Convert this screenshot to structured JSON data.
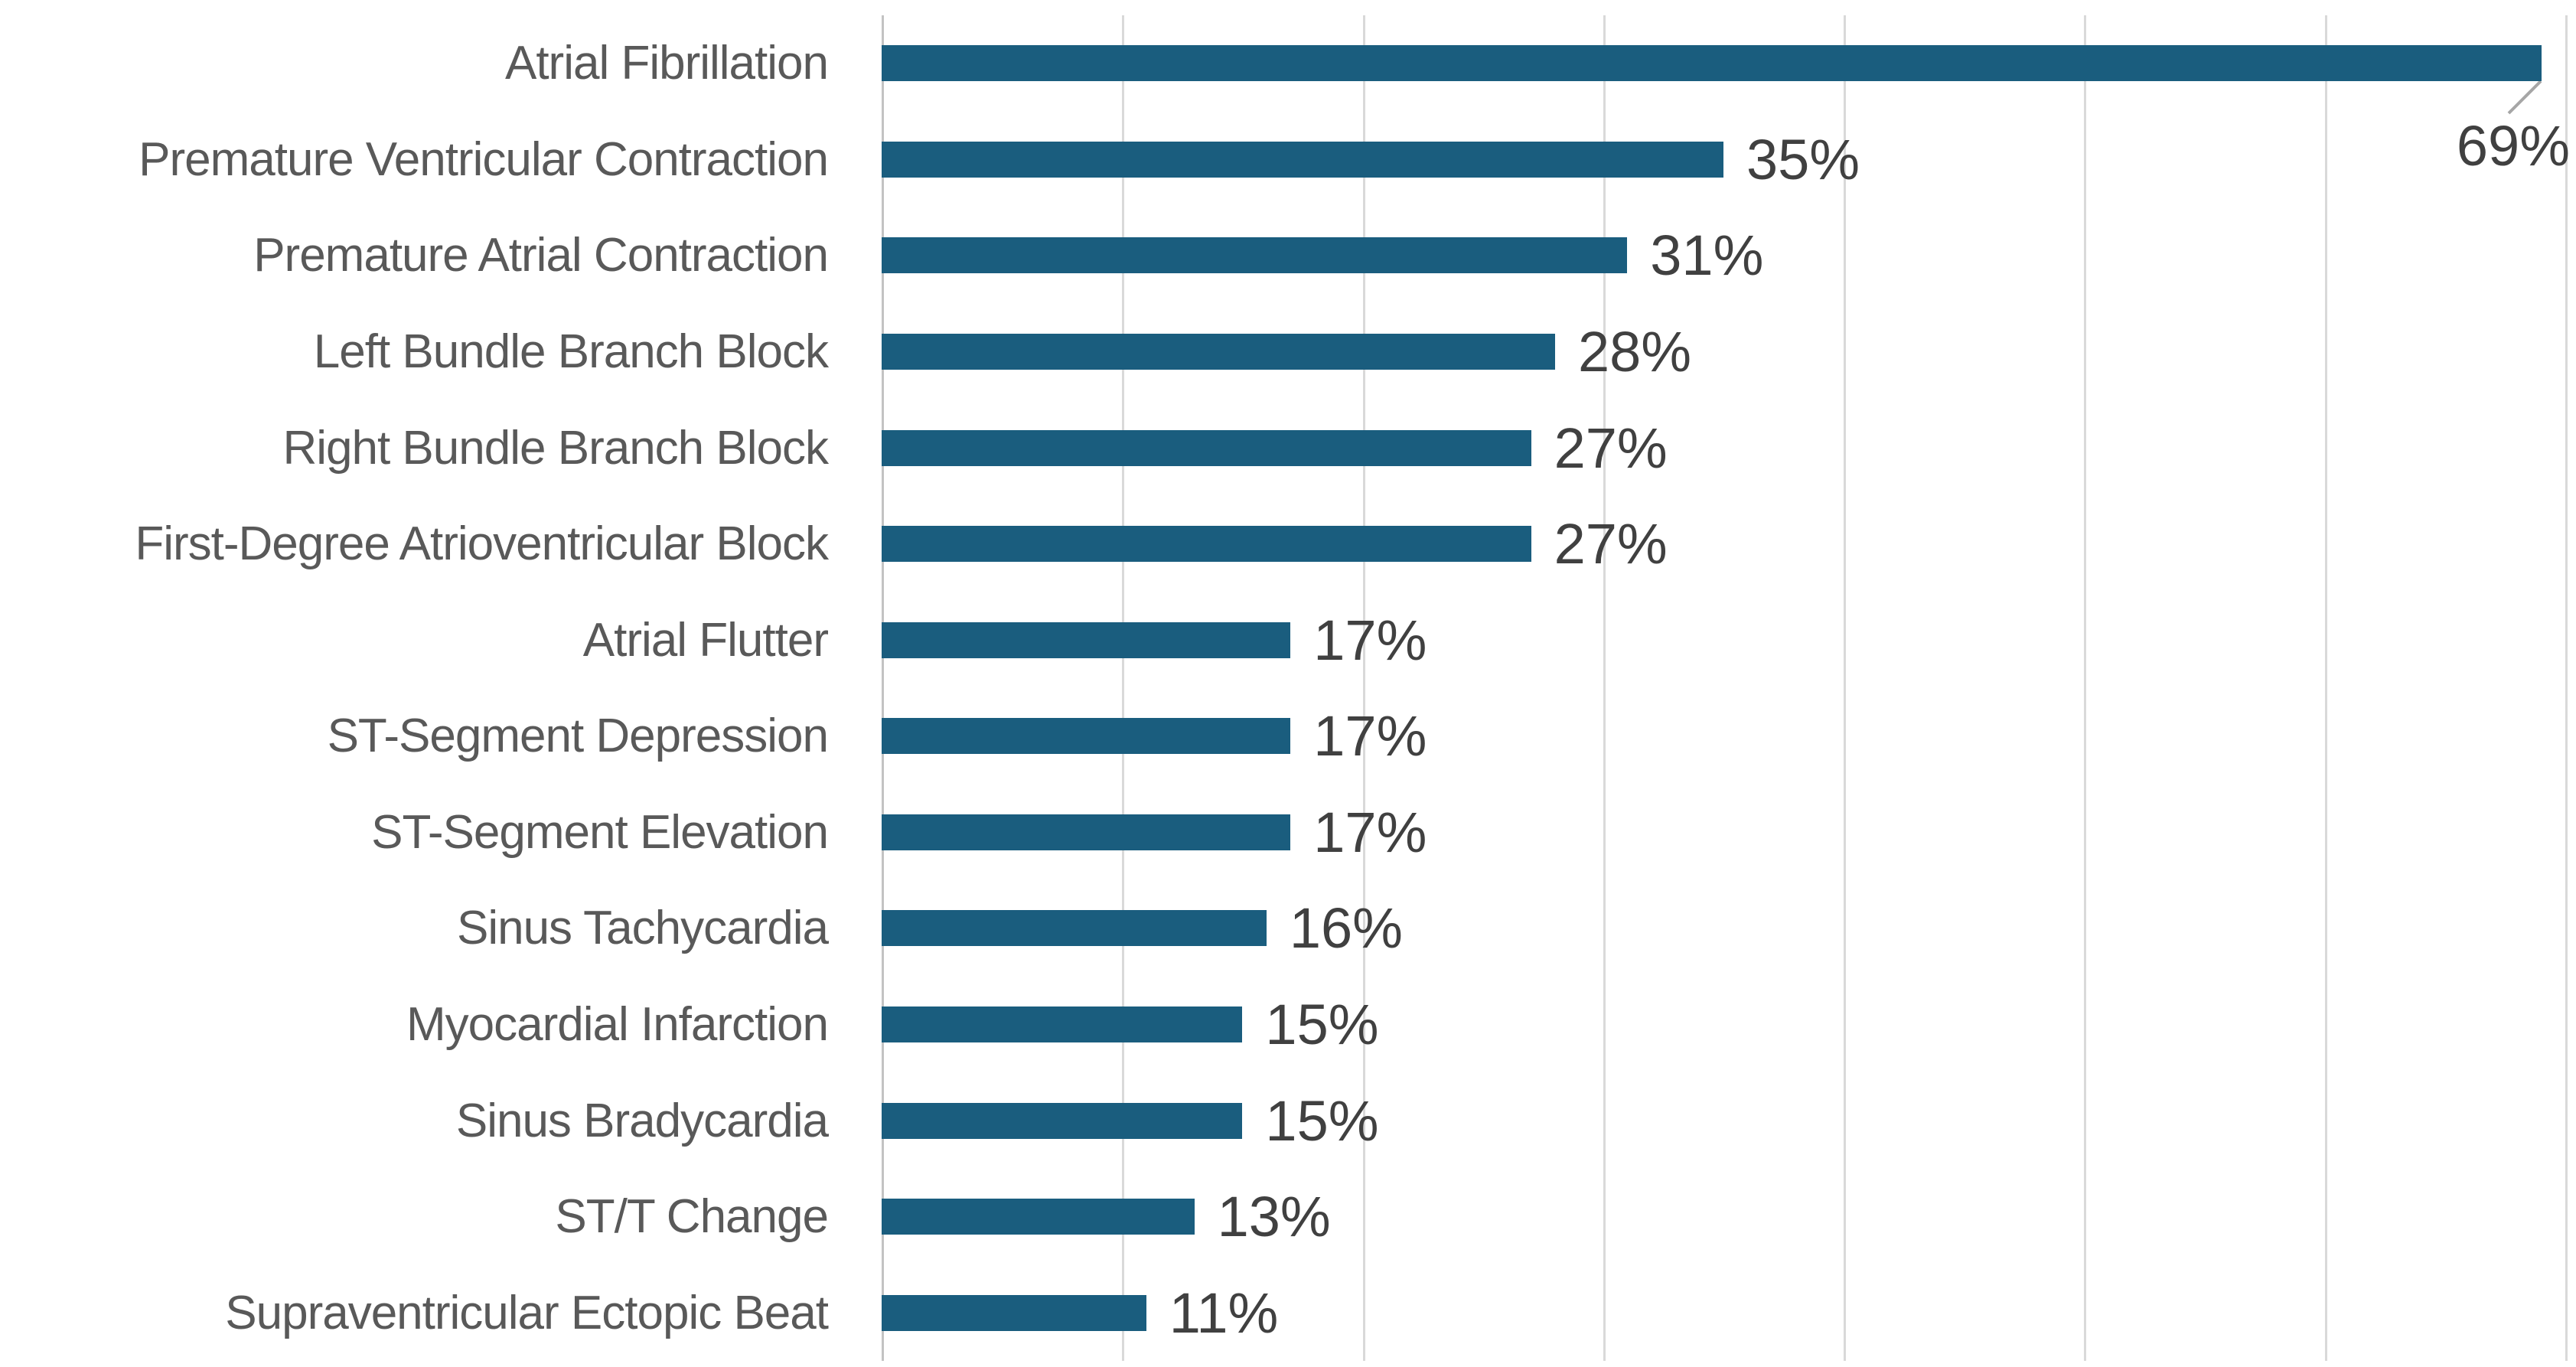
{
  "chart_data": {
    "type": "bar",
    "orientation": "horizontal",
    "title": "",
    "xlabel": "",
    "ylabel": "",
    "categories": [
      "Atrial Fibrillation",
      "Premature Ventricular Contraction",
      "Premature Atrial Contraction",
      "Left Bundle Branch Block",
      "Right Bundle Branch Block",
      "First-Degree Atrioventricular Block",
      "Atrial Flutter",
      "ST-Segment Depression",
      "ST-Segment Elevation",
      "Sinus Tachycardia",
      "Myocardial Infarction",
      "Sinus Bradycardia",
      "ST/T Change",
      "Supraventricular Ectopic Beat"
    ],
    "values": [
      69,
      35,
      31,
      28,
      27,
      27,
      17,
      17,
      17,
      16,
      15,
      15,
      13,
      11
    ],
    "value_labels": [
      "69%",
      "35%",
      "31%",
      "28%",
      "27%",
      "27%",
      "17%",
      "17%",
      "17%",
      "16%",
      "15%",
      "15%",
      "13%",
      "11%"
    ],
    "xlim": [
      0,
      70
    ],
    "gridline_interval_pct": 10,
    "grid": "vertical-gridlines-only",
    "axis_tick_labels_visible": false,
    "legend": "none",
    "bar_color": "#1A5D7E",
    "category_label_color": "#595959",
    "value_label_color": "#404040",
    "gridline_color": "#D9D9D9",
    "axis_line_color": "#C3C3C3",
    "leader_line_color": "#A6A6A6",
    "background_color": "#FFFFFF",
    "callout": {
      "category": "Atrial Fibrillation",
      "label": "69%",
      "placement": "below-bar-end-with-leader-line"
    }
  }
}
